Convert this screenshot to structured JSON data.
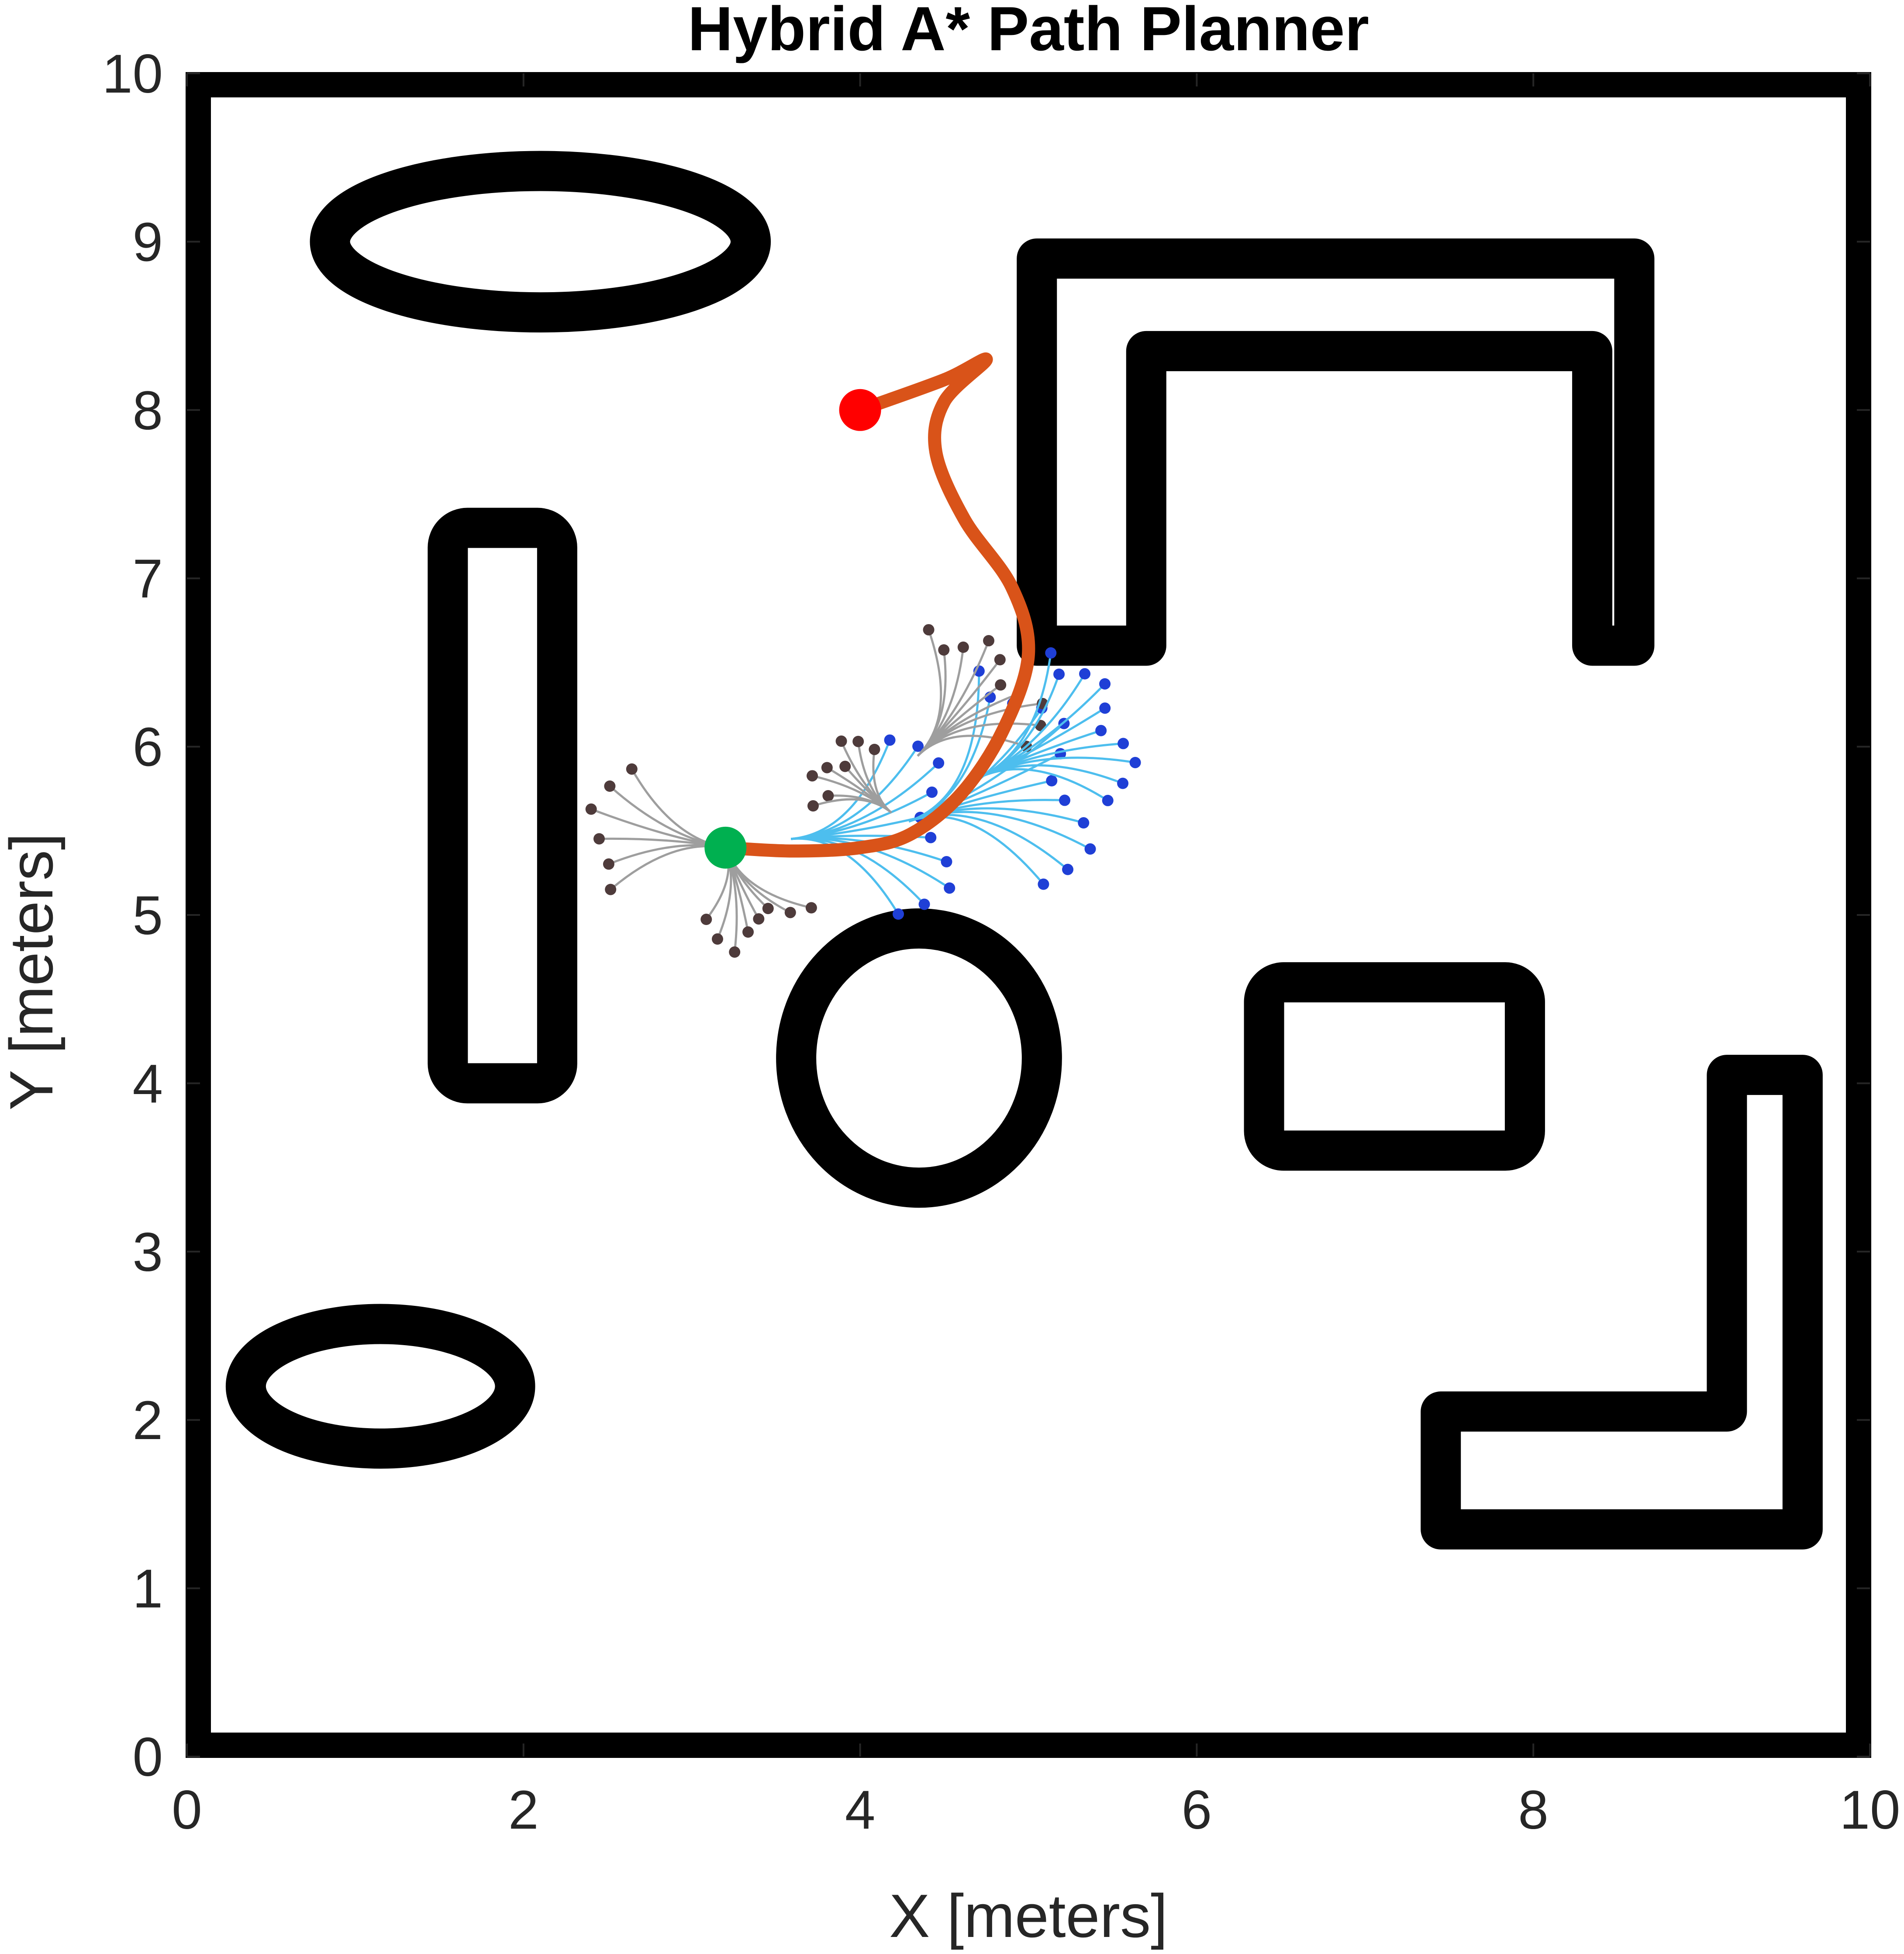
{
  "chart_data": {
    "type": "scatter",
    "title": "Hybrid A* Path Planner",
    "xlabel": "X [meters]",
    "ylabel": "Y [meters]",
    "xlim": [
      0,
      10
    ],
    "ylim": [
      0,
      10
    ],
    "xticks": [
      "0",
      "2",
      "4",
      "6",
      "8",
      "10"
    ],
    "yticks": [
      "0",
      "1",
      "2",
      "3",
      "4",
      "5",
      "6",
      "7",
      "8",
      "9",
      "10"
    ],
    "grid": false,
    "colors": {
      "obstacle": "#000000",
      "path": "#D95319",
      "start": "#00B050",
      "goal": "#FF0000",
      "explored_tree": "#9E9E9E",
      "explored_nodes": "#4E3B3B",
      "expansion_tree": "#4DBEEE",
      "expansion_nodes": "#1F3FD6"
    },
    "start": {
      "x": 3.2,
      "y": 5.4
    },
    "goal": {
      "x": 4.0,
      "y": 8.0
    },
    "path": {
      "x": [
        3.2,
        3.6,
        4.0,
        4.3,
        4.6,
        4.85,
        5.0,
        4.9,
        4.62,
        4.45,
        4.5,
        4.75,
        4.5,
        4.0
      ],
      "y": [
        5.4,
        5.38,
        5.4,
        5.48,
        5.72,
        6.1,
        6.55,
        6.95,
        7.35,
        7.75,
        8.05,
        8.3,
        8.18,
        8.0
      ]
    },
    "obstacles": [
      {
        "shape": "border",
        "x": [
          0,
          10
        ],
        "y": [
          0,
          10
        ]
      },
      {
        "shape": "ellipse",
        "cx": 2.1,
        "cy": 9.0,
        "rx": 1.25,
        "ry": 0.42
      },
      {
        "shape": "ellipse",
        "cx": 1.15,
        "cy": 2.2,
        "rx": 0.8,
        "ry": 0.37
      },
      {
        "shape": "ellipse",
        "cx": 4.35,
        "cy": 4.15,
        "rx": 0.73,
        "ry": 0.77
      },
      {
        "shape": "rect",
        "x": [
          1.55,
          2.2
        ],
        "y": [
          4.0,
          7.3
        ]
      },
      {
        "shape": "rect",
        "x": [
          6.4,
          7.95
        ],
        "y": [
          3.6,
          4.6
        ]
      },
      {
        "shape": "polyline",
        "x": [
          5.05,
          5.05,
          8.6,
          8.6,
          8.35,
          8.35,
          5.7,
          5.7
        ],
        "y": [
          6.6,
          8.9,
          8.9,
          6.6,
          6.6,
          8.35,
          8.35,
          6.6
        ]
      },
      {
        "shape": "polyline",
        "x": [
          7.45,
          7.45,
          9.6,
          9.6,
          9.15,
          9.15
        ],
        "y": [
          2.05,
          1.35,
          1.35,
          4.05,
          4.05,
          2.05
        ]
      }
    ]
  }
}
